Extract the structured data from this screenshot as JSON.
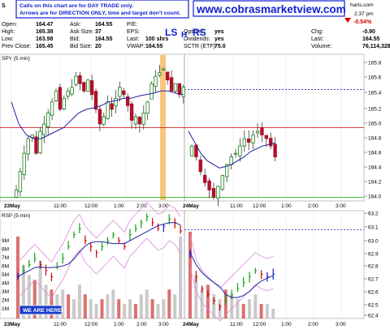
{
  "header": {
    "symbol_letter": "S",
    "notice_line1": "Calls on this chart are for DAY TRADE only.",
    "notice_line2": "Arrows are for DIRECTION ONLY, time and target don't count.",
    "website": "www.cobrasmarketview.com",
    "charts_suffix": "harts.com",
    "time": "2:37 pm",
    "pct_change": "-0.54%",
    "rows": [
      {
        "l1": "Open:",
        "v1": "164.47",
        "l2": "Ask:",
        "v2": "164.55",
        "l3": "P/E:",
        "v3": "",
        "l4": "",
        "v4": ""
      },
      {
        "l1": "High:",
        "v1": "165.38",
        "l2": "Ask Size:",
        "v2": "37",
        "l3": "EPS:",
        "v3": "",
        "l4": "Options:",
        "v4": "yes"
      },
      {
        "l1": "Low:",
        "v1": "163.98",
        "l2": "Bid:",
        "v2": "164.55",
        "l3": "Last:",
        "v3": "100 shrs",
        "l4": "Dividends:",
        "v4": "yes"
      },
      {
        "l1": "Prev Close:",
        "v1": "165.45",
        "l2": "Bid Size:",
        "v2": "20",
        "l3": "VWAP:",
        "v3": "164.55",
        "l4": "SCTR (ETF):",
        "v4": "75.0"
      }
    ],
    "right_rows": [
      {
        "label": "Chg:",
        "value": "-0.90"
      },
      {
        "label": "Last:",
        "value": "164.55"
      },
      {
        "label": "Volume:",
        "value": "76,114,328"
      }
    ],
    "annotations": [
      "LS",
      "H",
      "RS"
    ]
  },
  "colors": {
    "up": "#1a7f1a",
    "down": "#b0102a",
    "ma": "#2020a0",
    "hline_red": "#cc0000",
    "hline_green": "#00aa00",
    "dotted": "#2020c0",
    "highlight": "#f8c070",
    "rsp_up": "#10a010",
    "rsp_down": "#d00000",
    "rsp_blue": "#1020d0",
    "rsp_env": "#dd88dd",
    "vol": "#b8b8b8",
    "vol_red": "#d04040"
  },
  "chart_data": [
    {
      "type": "candlestick",
      "title": "SPY (5 min)",
      "ylim": [
        163.95,
        165.95
      ],
      "y_ticks": [
        "165.8",
        "165.6",
        "165.4",
        "165.2",
        "165.0",
        "164.8",
        "164.6",
        "164.4",
        "164.2",
        "164.0"
      ],
      "x_tick_labels": [
        "23May",
        "11:00",
        "12:00",
        "1:00",
        "2:00",
        "3:00",
        "24May",
        "11:00",
        "12:00",
        "1:00",
        "2:00",
        "3:00"
      ],
      "hlines": [
        {
          "value": 164.95,
          "style": "solid-red"
        },
        {
          "value": 165.47,
          "style": "dotted-blue"
        },
        {
          "value": 164.0,
          "style": "solid-green"
        }
      ],
      "candles_day1": [
        164.1,
        164.35,
        164.6,
        164.8,
        164.85,
        164.6,
        164.9,
        165.0,
        165.15,
        165.3,
        165.45,
        165.2,
        165.35,
        165.45,
        165.5,
        165.65,
        165.55,
        165.45,
        165.6,
        165.4,
        165.2,
        165.0,
        165.1,
        165.3,
        165.2,
        165.35,
        165.5,
        165.4,
        165.25,
        165.05,
        165.1,
        165.0,
        165.15,
        165.3,
        165.55,
        165.65,
        165.7,
        165.75,
        165.6,
        165.45,
        165.55,
        165.4,
        165.5
      ],
      "candles_day2": [
        164.7,
        164.55,
        164.35,
        164.2,
        164.1,
        164.0,
        164.15,
        164.3,
        164.45,
        164.55,
        164.6,
        164.7,
        164.8,
        164.75,
        164.85,
        164.9,
        164.85,
        164.8,
        164.7,
        164.55
      ],
      "ma_day1": [
        165.3,
        165.0,
        164.85,
        164.8,
        164.8,
        164.85,
        164.9,
        164.95,
        165.05,
        165.15,
        165.2,
        165.22,
        165.25,
        165.3,
        165.32,
        165.35,
        165.35,
        165.38,
        165.4,
        165.42,
        165.45,
        165.45,
        165.42,
        165.4
      ],
      "ma_day2": [
        164.9,
        164.75,
        164.6,
        164.5,
        164.45,
        164.4,
        164.42,
        164.45,
        164.5,
        164.55,
        164.62,
        164.66,
        164.7,
        164.72,
        164.74
      ]
    },
    {
      "type": "line",
      "title": "RSP (5 min)",
      "ylim": [
        62.35,
        63.25
      ],
      "y_ticks": [
        "63.2",
        "63.1",
        "63.0",
        "62.9",
        "62.8",
        "62.7",
        "62.6",
        "62.5",
        "62.4"
      ],
      "volume_ticks": [
        "9M",
        "8M",
        "7M",
        "6M",
        "5M",
        "4M",
        "3M",
        "2M",
        "1M"
      ],
      "x_tick_labels": [
        "23May",
        "11:00",
        "12:00",
        "1:00",
        "2:00",
        "3:00",
        "24May",
        "11:00",
        "12:00",
        "1:00",
        "2:00",
        "3:00"
      ],
      "hline_dotted": 63.09,
      "badge": "WE ARE HERE!",
      "bars_day1": [
        62.7,
        62.75,
        62.8,
        62.85,
        62.8,
        62.75,
        62.7,
        62.78,
        62.85,
        62.95,
        63.05,
        63.1,
        63.0,
        62.95,
        62.9,
        62.95,
        63.0,
        63.05,
        63.0,
        62.95,
        63.05,
        63.1,
        63.15,
        63.2,
        63.15,
        63.1,
        63.12,
        63.18,
        63.15,
        63.08
      ],
      "bars_day2": [
        62.9,
        62.7,
        62.6,
        62.55,
        62.5,
        62.45,
        62.5,
        62.55,
        62.6,
        62.65,
        62.7,
        62.75,
        62.72,
        62.7,
        62.72
      ],
      "volume_day1": [
        8.5,
        5.5,
        4.5,
        4.0,
        6.0,
        3.5,
        3.0,
        2.5,
        3.0,
        2.5,
        2.0,
        3.5,
        2.5,
        2.0,
        1.5,
        2.0,
        2.5,
        3.0,
        2.0,
        1.5,
        2.0,
        1.5,
        2.5,
        3.0,
        2.0,
        1.5,
        2.0,
        3.0,
        2.5,
        8.5
      ],
      "volume_day2": [
        9.0,
        4.5,
        3.0,
        3.5,
        2.5,
        2.0,
        3.0,
        2.5,
        2.0,
        1.5,
        2.0,
        2.5,
        1.5,
        1.5,
        1.0
      ]
    }
  ]
}
